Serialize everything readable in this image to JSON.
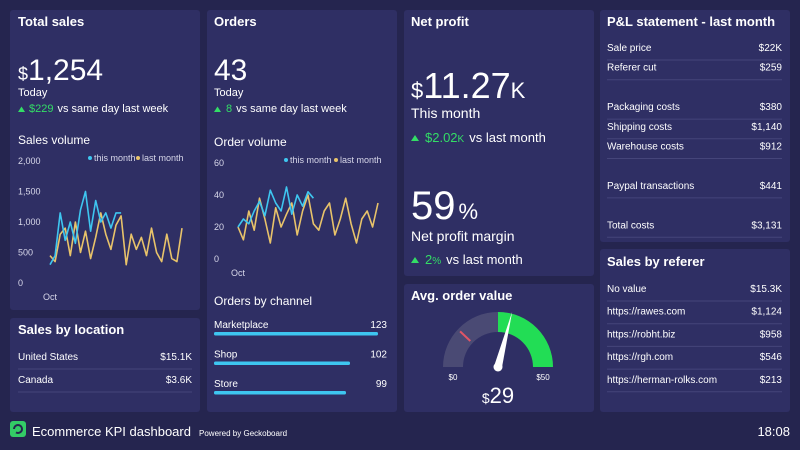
{
  "total_sales": {
    "title": "Total sales",
    "currency": "$",
    "value": "1,254",
    "period": "Today",
    "change": "$229",
    "change_text": "vs same day last week",
    "chart": {
      "type": "line",
      "title": "Sales volume",
      "categories": [
        "Oct",
        null,
        null,
        null,
        null,
        null,
        null,
        null,
        null,
        null,
        null,
        null,
        null,
        null,
        null,
        null,
        null,
        null,
        null,
        null,
        null,
        null,
        null,
        null,
        null,
        null,
        null
      ],
      "series": [
        {
          "name": "this month",
          "color": "#3ec6f0",
          "values": [
            300,
            450,
            1150,
            700,
            1000,
            650,
            1200,
            1500,
            850,
            1350,
            1000,
            1150,
            900,
            1150,
            1150,
            null,
            null,
            null,
            null,
            null,
            null,
            null,
            null,
            null,
            null,
            null,
            null
          ]
        },
        {
          "name": "last month",
          "color": "#e8c36a",
          "values": [
            450,
            350,
            800,
            900,
            450,
            1000,
            500,
            850,
            400,
            750,
            1150,
            800,
            550,
            950,
            1100,
            300,
            800,
            550,
            750,
            450,
            900,
            500,
            350,
            800,
            400,
            350,
            900
          ]
        }
      ],
      "ylim": [
        0,
        2000
      ],
      "yticks": [
        0,
        500,
        {
          "value": 1000,
          "label": "1,000"
        },
        {
          "value": 1500,
          "label": "1,500"
        },
        {
          "value": 2000,
          "label": "2,000"
        }
      ]
    }
  },
  "sales_by_location": {
    "title": "Sales by location",
    "rows": [
      [
        "United States",
        "$15.1K"
      ],
      [
        "Canada",
        "$3.6K"
      ]
    ]
  },
  "orders": {
    "title": "Orders",
    "value": "43",
    "period": "Today",
    "change": "8",
    "change_text": "vs same day last week",
    "chart": {
      "type": "line",
      "title": "Order volume",
      "categories": [
        "Oct",
        null,
        null,
        null,
        null,
        null,
        null,
        null,
        null,
        null,
        null,
        null,
        null,
        null,
        null,
        null,
        null,
        null,
        null,
        null,
        null,
        null,
        null,
        null,
        null,
        null,
        null
      ],
      "series": [
        {
          "name": "this month",
          "color": "#3ec6f0",
          "values": [
            20,
            25,
            22,
            30,
            36,
            27,
            43,
            35,
            30,
            45,
            28,
            40,
            33,
            42,
            38,
            null,
            null,
            null,
            null,
            null,
            null,
            null,
            null,
            null,
            null,
            null,
            null
          ]
        },
        {
          "name": "last month",
          "color": "#e8c36a",
          "values": [
            20,
            12,
            30,
            18,
            38,
            25,
            10,
            32,
            20,
            28,
            35,
            15,
            30,
            40,
            22,
            18,
            30,
            35,
            15,
            25,
            38,
            22,
            10,
            25,
            30,
            20,
            35
          ]
        }
      ],
      "ylim": [
        0,
        60
      ],
      "yticks": [
        0,
        20,
        40,
        60
      ]
    },
    "channels": {
      "title": "Orders by channel",
      "color": "#3ec6f0",
      "rows": [
        {
          "label": "Marketplace",
          "value": 123
        },
        {
          "label": "Shop",
          "value": 102
        },
        {
          "label": "Store",
          "value": 99
        }
      ]
    }
  },
  "net_profit": {
    "title": "Net profit",
    "currency": "$",
    "value": "11.27",
    "suffix": "K",
    "period": "This month",
    "change": "$2.02",
    "change_suffix": "K",
    "change_text": "vs last month",
    "margin": "59",
    "margin_suffix": "%",
    "margin_label": "Net profit margin",
    "margin_change": "2",
    "margin_change_suffix": "%",
    "margin_change_text": "vs last month"
  },
  "avg_order_value": {
    "title": "Avg. order value",
    "min": {
      "value": 0,
      "label": "$0"
    },
    "max": {
      "value": 50,
      "label": "$50"
    },
    "value": 29,
    "currency": "$",
    "value_label": "29",
    "target": 12,
    "good_from": 25
  },
  "pl_statement": {
    "title": "P&L statement - last month",
    "groups": [
      [
        [
          "Sale price",
          "$22K"
        ],
        [
          "Referer cut",
          "$259"
        ]
      ],
      [
        [
          "Packaging costs",
          "$380"
        ],
        [
          "Shipping costs",
          "$1,140"
        ],
        [
          "Warehouse costs",
          "$912"
        ]
      ],
      [
        [
          "Paypal transactions",
          "$441"
        ]
      ],
      [
        [
          "Total costs",
          "$3,131"
        ]
      ]
    ]
  },
  "sales_by_referer": {
    "title": "Sales by referer",
    "rows": [
      [
        "No value",
        "$15.3K"
      ],
      [
        "https://rawes.com",
        "$1,124"
      ],
      [
        "https://robht.biz",
        "$958"
      ],
      [
        "https://rgh.com",
        "$546"
      ],
      [
        "https://herman-rolks.com",
        "$213"
      ]
    ]
  },
  "footer": {
    "title": "Ecommerce KPI dashboard",
    "powered_by": "Powered by Geckoboard",
    "time": "18:08"
  }
}
